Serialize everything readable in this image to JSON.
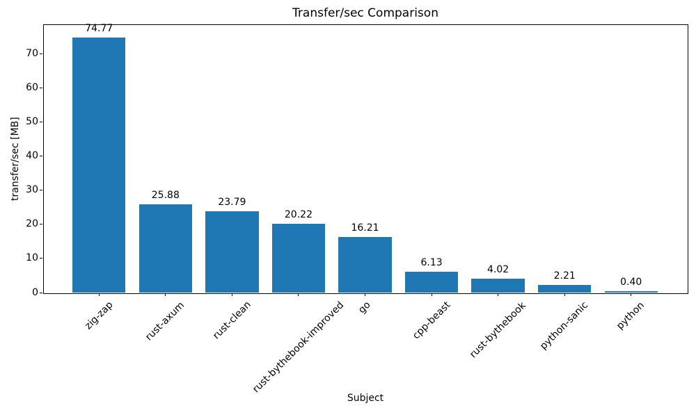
{
  "figure": {
    "title": "Transfer/sec Comparison",
    "xlabel": "Subject",
    "ylabel": "transfer/sec [MB]"
  },
  "chart_data": {
    "type": "bar",
    "title": "Transfer/sec Comparison",
    "xlabel": "Subject",
    "ylabel": "transfer/sec [MB]",
    "categories": [
      "zig-zap",
      "rust-axum",
      "rust-clean",
      "rust-bythebook-improved",
      "go",
      "cpp-beast",
      "rust-bythebook",
      "python-sanic",
      "python"
    ],
    "values": [
      74.77,
      25.88,
      23.79,
      20.22,
      16.21,
      6.13,
      4.02,
      2.21,
      0.4
    ],
    "value_labels": [
      "74.77",
      "25.88",
      "23.79",
      "20.22",
      "16.21",
      "6.13",
      "4.02",
      "2.21",
      "0.40"
    ],
    "yticks": [
      0,
      10,
      20,
      30,
      40,
      50,
      60,
      70
    ],
    "ylim": [
      0,
      78.7
    ],
    "bar_color": "#1f77b4",
    "text_color": "#000000",
    "background_color": "#ffffff",
    "grid": false,
    "legend": null,
    "x_tick_rotation": 45,
    "bar_width_fraction": 0.8
  }
}
